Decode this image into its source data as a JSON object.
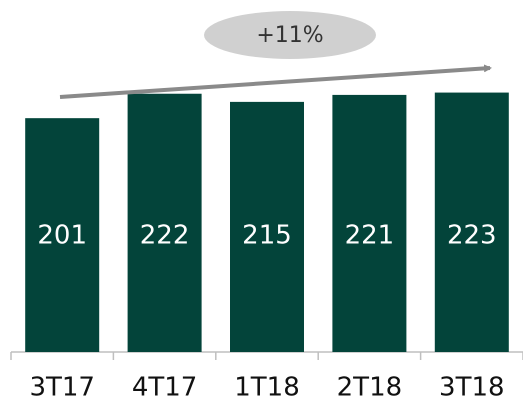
{
  "chart_data": {
    "type": "bar",
    "categories": [
      "3T17",
      "4T17",
      "1T18",
      "2T18",
      "3T18"
    ],
    "values": [
      201,
      222,
      215,
      221,
      223
    ],
    "color": "#03443a",
    "ylim": [
      0,
      300
    ],
    "annotation": "+11%"
  }
}
